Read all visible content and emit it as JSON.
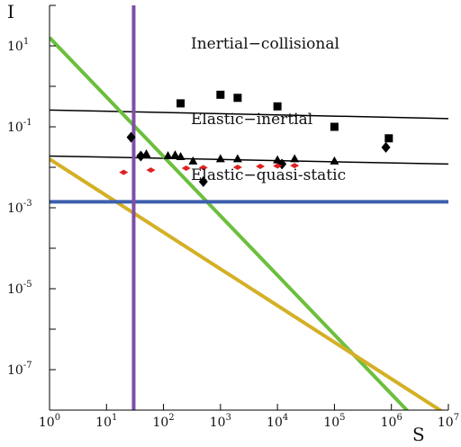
{
  "chart_data": {
    "type": "scatter",
    "title": "",
    "xlabel": "S",
    "ylabel": "I",
    "xscale": "log",
    "yscale": "log",
    "xlim": [
      1,
      10000000
    ],
    "ylim": [
      1e-08,
      100
    ],
    "x_ticks": [
      {
        "base": "10",
        "exp": "0"
      },
      {
        "base": "10",
        "exp": "1"
      },
      {
        "base": "10",
        "exp": "2"
      },
      {
        "base": "10",
        "exp": "3"
      },
      {
        "base": "10",
        "exp": "4"
      },
      {
        "base": "10",
        "exp": "5"
      },
      {
        "base": "10",
        "exp": "6"
      },
      {
        "base": "10",
        "exp": "7"
      }
    ],
    "y_ticks": [
      {
        "base": "10",
        "exp": "1"
      },
      {
        "base": "10",
        "exp": "-1"
      },
      {
        "base": "10",
        "exp": "-3"
      },
      {
        "base": "10",
        "exp": "-5"
      },
      {
        "base": "10",
        "exp": "-7"
      }
    ],
    "annotations": [
      "Inertial−collisional",
      "Elastic−inertial",
      "Elastic−quasi-static"
    ],
    "grid": false,
    "legend": "none",
    "series": [
      {
        "marker": "square",
        "color": "#000000",
        "points": [
          [
            200,
            0.38
          ],
          [
            1000,
            0.62
          ],
          [
            2000,
            0.52
          ],
          [
            10000,
            0.32
          ],
          [
            100000,
            0.1
          ],
          [
            900000,
            0.052
          ]
        ]
      },
      {
        "marker": "diamond",
        "color": "#000000",
        "points": [
          [
            27,
            0.055
          ],
          [
            40,
            0.019
          ],
          [
            500,
            0.0044
          ],
          [
            12000,
            0.012
          ],
          [
            800000,
            0.031
          ]
        ]
      },
      {
        "marker": "triangle",
        "color": "#000000",
        "points": [
          [
            50,
            0.021
          ],
          [
            120,
            0.019
          ],
          [
            160,
            0.02
          ],
          [
            200,
            0.018
          ],
          [
            330,
            0.014
          ],
          [
            1000,
            0.016
          ],
          [
            2000,
            0.016
          ],
          [
            10000,
            0.015
          ],
          [
            20000,
            0.016
          ],
          [
            100000,
            0.014
          ]
        ]
      },
      {
        "marker": "diamond-small",
        "color": "#e02020",
        "points": [
          [
            20,
            0.0075
          ],
          [
            60,
            0.0085
          ],
          [
            250,
            0.0095
          ],
          [
            500,
            0.0098
          ],
          [
            2000,
            0.01
          ],
          [
            5000,
            0.0105
          ],
          [
            10000,
            0.0108
          ],
          [
            20000,
            0.011
          ]
        ]
      }
    ],
    "lines": [
      {
        "kind": "segment",
        "color": "#000000",
        "width": 1.5,
        "from": [
          1,
          0.26
        ],
        "to": [
          10000000,
          0.16
        ]
      },
      {
        "kind": "segment",
        "color": "#000000",
        "width": 1.5,
        "from": [
          1,
          0.019
        ],
        "to": [
          10000000,
          0.012
        ]
      },
      {
        "kind": "segment",
        "color": "#6cbf3c",
        "width": 4,
        "from": [
          1,
          16
        ],
        "to": [
          2000000,
          9e-09
        ]
      },
      {
        "kind": "segment",
        "color": "#d4b026",
        "width": 4,
        "from": [
          1,
          0.016
        ],
        "to": [
          8000000,
          9e-09
        ]
      },
      {
        "kind": "hline",
        "color": "#3e5fad",
        "width": 4,
        "y": 0.0014
      },
      {
        "kind": "vline",
        "color": "#7f4ea6",
        "width": 4,
        "x": 30
      }
    ]
  }
}
